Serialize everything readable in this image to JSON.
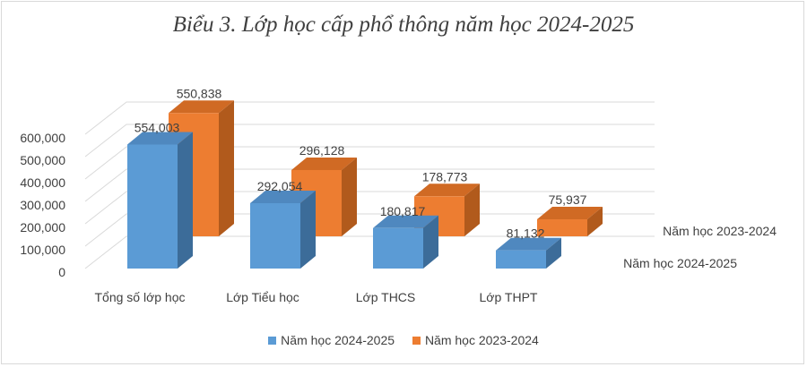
{
  "chart_data": {
    "type": "bar",
    "title": "Biểu 3. Lớp học cấp phổ thông năm học 2024-2025",
    "categories": [
      "Tổng số lớp học",
      "Lớp Tiểu học",
      "Lớp THCS",
      "Lớp THPT"
    ],
    "series": [
      {
        "name": "Năm học 2024-2025",
        "values": [
          554003,
          292054,
          180817,
          81132
        ],
        "labels": [
          "554,003",
          "292,054",
          "180,817",
          "81,132"
        ]
      },
      {
        "name": "Năm học 2023-2024",
        "values": [
          550838,
          296128,
          178773,
          75937
        ],
        "labels": [
          "550,838",
          "296,128",
          "178,773",
          "75,937"
        ]
      }
    ],
    "y_ticks": [
      "0",
      "100,000",
      "200,000",
      "300,000",
      "400,000",
      "500,000",
      "600,000"
    ],
    "ylim": [
      0,
      600000
    ],
    "legend_position": "bottom",
    "grid": true
  },
  "colors": {
    "series1_front": "#5b9bd5",
    "series1_top": "#4f88bf",
    "series1_side": "#3c6c99",
    "series2_front": "#ed7d31",
    "series2_top": "#d06a24",
    "series2_side": "#b15a1c",
    "grid": "#d9d9d9",
    "text": "#404040"
  }
}
